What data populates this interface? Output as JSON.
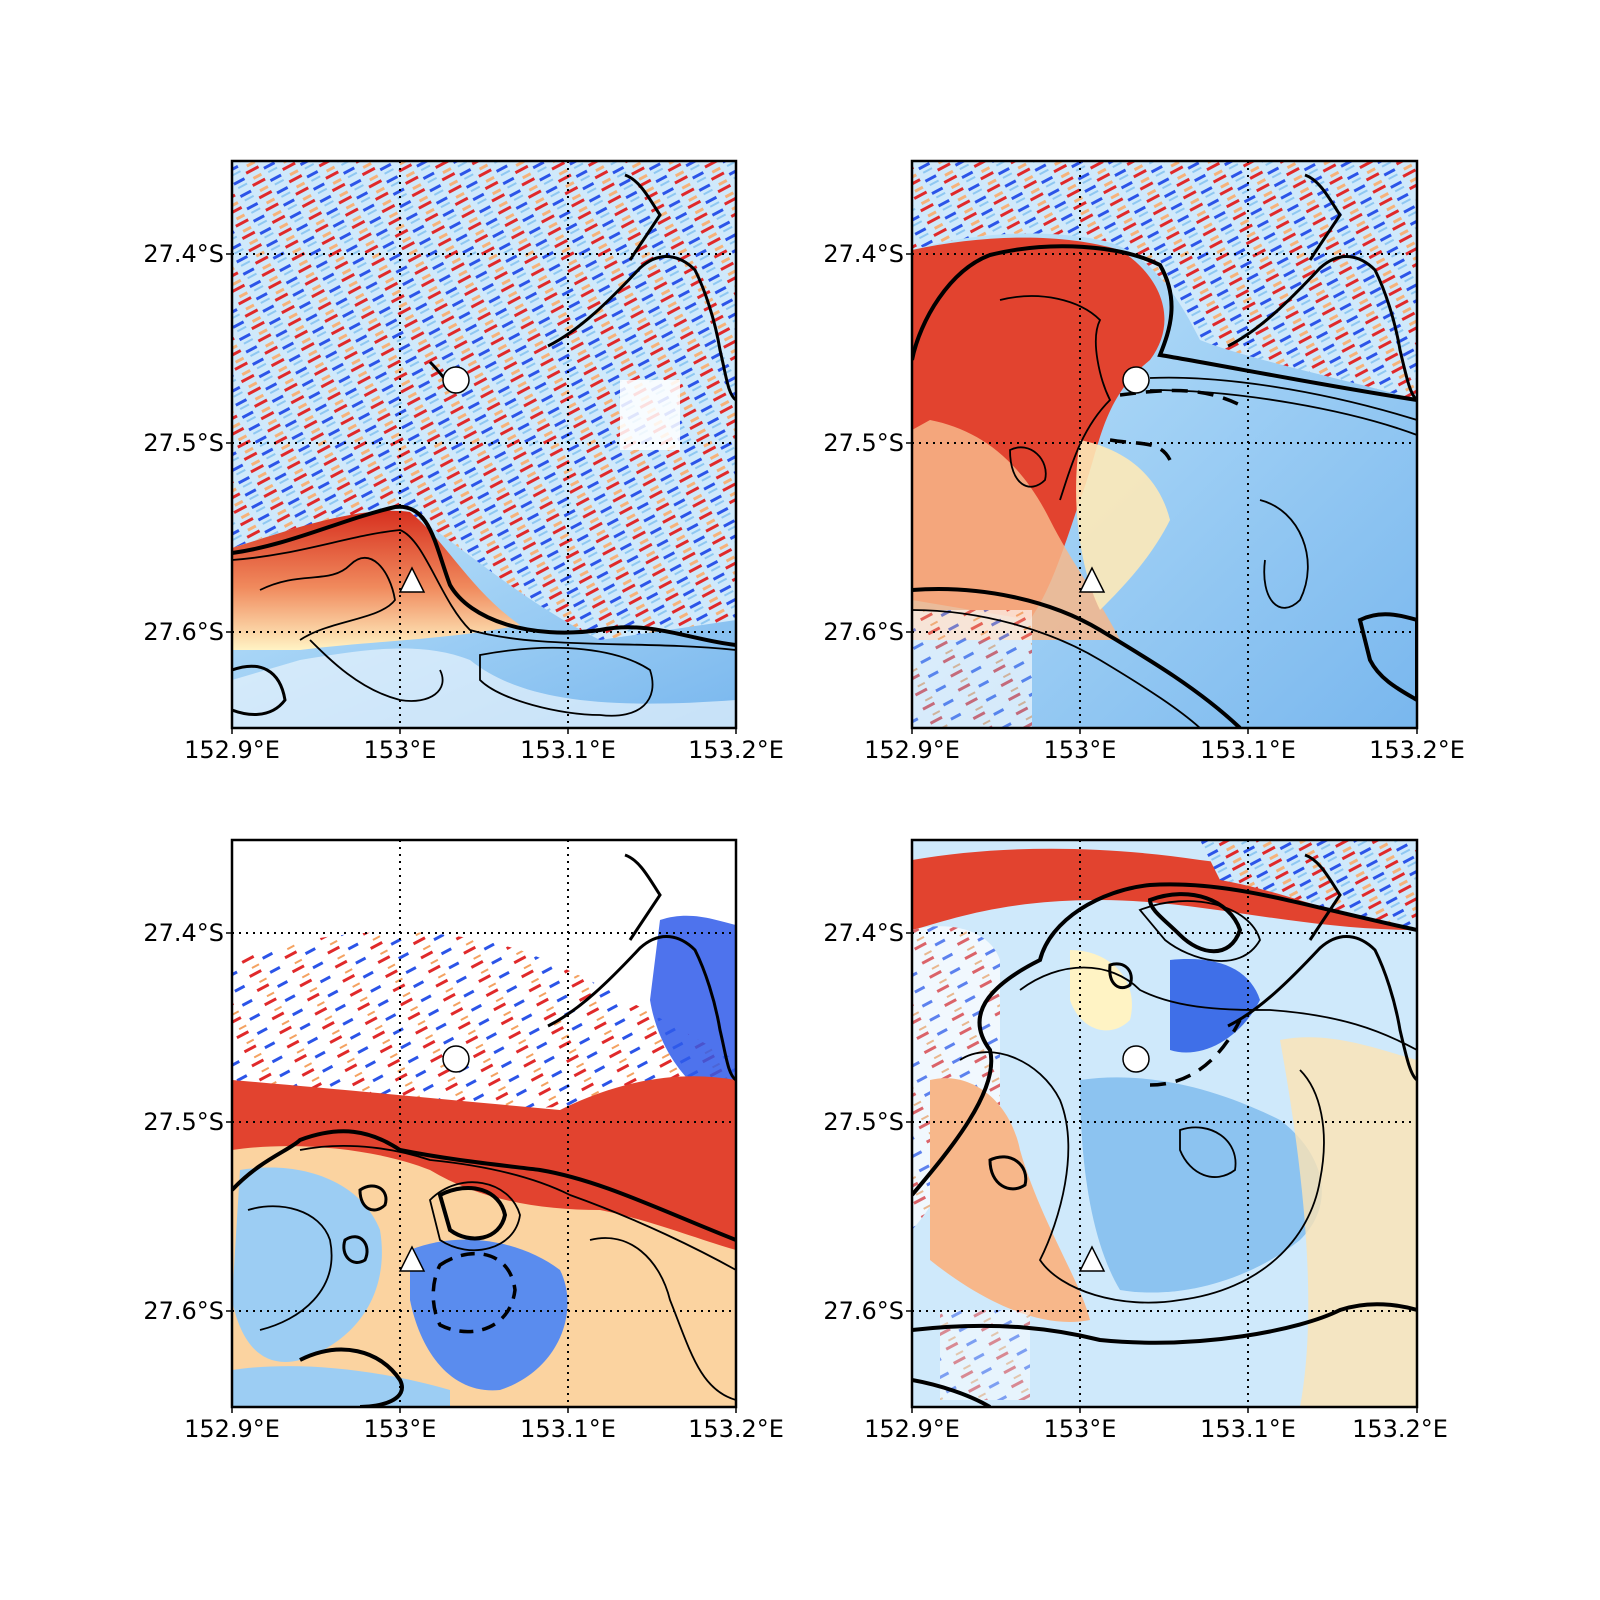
{
  "figure": {
    "layout": "2x2 panels",
    "colormap": "blue-white-red diverging",
    "colors": {
      "red": "#d7301f",
      "orange": "#f4a261",
      "cream": "#fff3c4",
      "lightblue": "#a6d8f5",
      "blue": "#2f5bea",
      "contour": "#000000"
    }
  },
  "panels": [
    {
      "id": "top-left",
      "x_ticks": [
        "152.9°E",
        "153°E",
        "153.1°E",
        "153.2°E"
      ],
      "y_ticks": [
        "27.4°S",
        "27.5°S",
        "27.6°S"
      ],
      "markers": [
        {
          "symbol": "circle",
          "lon": 153.033,
          "lat": -27.469
        },
        {
          "symbol": "triangle",
          "lon": 153.008,
          "lat": -27.578
        }
      ]
    },
    {
      "id": "top-right",
      "x_ticks": [
        "152.9°E",
        "153°E",
        "153.1°E",
        "153.2°E"
      ],
      "y_ticks": [
        "27.4°S",
        "27.5°S",
        "27.6°S"
      ],
      "markers": [
        {
          "symbol": "circle",
          "lon": 153.033,
          "lat": -27.469
        },
        {
          "symbol": "triangle",
          "lon": 153.008,
          "lat": -27.578
        }
      ]
    },
    {
      "id": "bottom-left",
      "x_ticks": [
        "152.9°E",
        "153°E",
        "153.1°E",
        "153.2°E"
      ],
      "y_ticks": [
        "27.4°S",
        "27.5°S",
        "27.6°S"
      ],
      "markers": [
        {
          "symbol": "circle",
          "lon": 153.033,
          "lat": -27.469
        },
        {
          "symbol": "triangle",
          "lon": 153.008,
          "lat": -27.578
        }
      ]
    },
    {
      "id": "bottom-right",
      "x_ticks": [
        "152.9°E",
        "153°E",
        "153.1°E",
        "153.2°E"
      ],
      "y_ticks": [
        "27.4°S",
        "27.5°S",
        "27.6°S"
      ],
      "markers": [
        {
          "symbol": "circle",
          "lon": 153.033,
          "lat": -27.469
        },
        {
          "symbol": "triangle",
          "lon": 153.008,
          "lat": -27.578
        }
      ]
    }
  ]
}
